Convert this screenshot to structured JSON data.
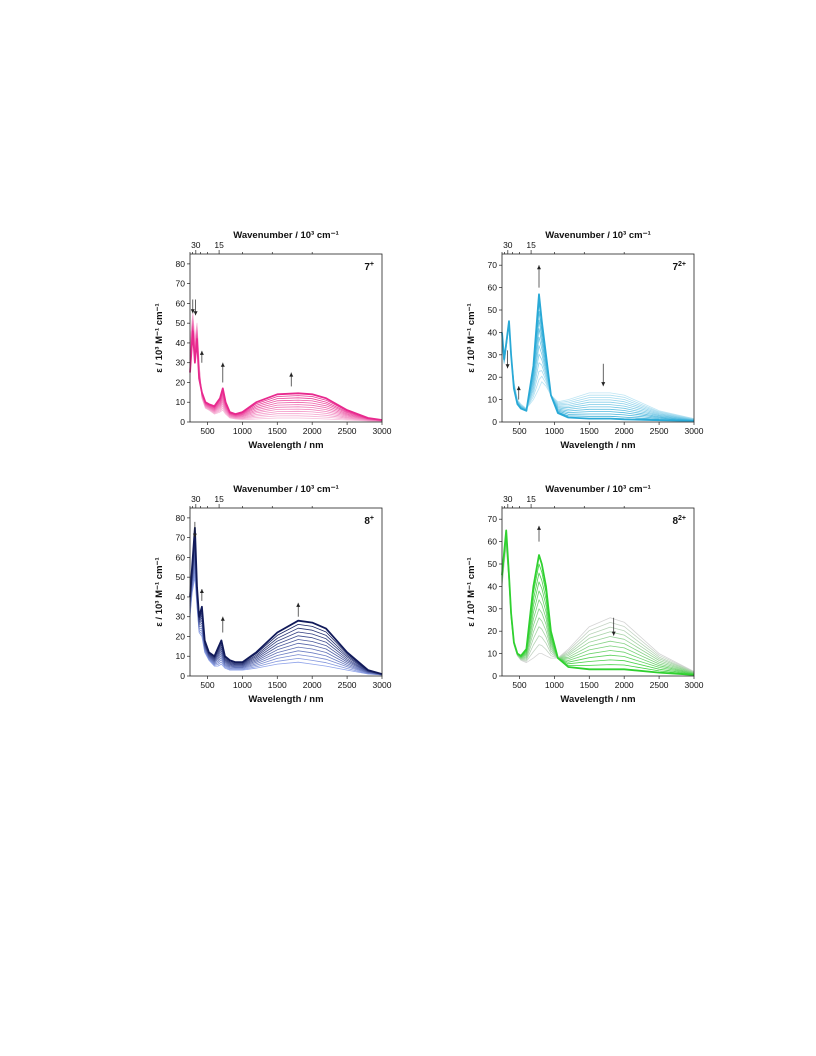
{
  "chart_data": [
    {
      "type": "line",
      "panel": "top-left",
      "compound_label": "7",
      "compound_superscript": "+",
      "xlabel": "Wavelength / nm",
      "ylabel": "ε / 10³ M⁻¹ cm⁻¹",
      "top_xlabel": "Wavenumber / 10³ cm⁻¹",
      "top_ticks": [
        "30",
        "15"
      ],
      "x_ticks": [
        500,
        1000,
        1500,
        2000,
        2500,
        3000
      ],
      "y_ticks": [
        0,
        10,
        20,
        30,
        40,
        50,
        60,
        70,
        80
      ],
      "xlim": [
        250,
        3000
      ],
      "ylim": [
        0,
        85
      ],
      "color_final": "#e8298e",
      "color_initial": "#f7bfdc",
      "n_traces": 12,
      "final_spectrum": {
        "x": [
          250,
          290,
          320,
          350,
          380,
          420,
          470,
          520,
          600,
          680,
          720,
          760,
          820,
          900,
          1000,
          1200,
          1500,
          1800,
          2000,
          2200,
          2500,
          2800,
          3000
        ],
        "y": [
          25,
          46,
          30,
          42,
          22,
          15,
          10,
          9,
          8,
          12,
          17,
          10,
          5,
          4,
          5,
          10,
          14,
          14.5,
          14,
          12,
          6,
          2,
          1
        ]
      },
      "initial_spectrum": {
        "x": [
          250,
          290,
          320,
          350,
          380,
          420,
          470,
          520,
          600,
          680,
          720,
          760,
          820,
          900,
          1000,
          1200,
          1500,
          1800,
          2000,
          2200,
          2500,
          2800,
          3000
        ],
        "y": [
          40,
          55,
          42,
          50,
          30,
          12,
          7,
          6,
          4,
          5,
          6,
          4,
          2,
          1.5,
          1.2,
          1.5,
          2,
          2,
          1.8,
          1.5,
          1,
          0.5,
          0.3
        ]
      },
      "arrows": [
        {
          "x": 290,
          "y_from": 62,
          "y_to": 55,
          "dir": "down"
        },
        {
          "x": 330,
          "y_from": 62,
          "y_to": 54,
          "dir": "down"
        },
        {
          "x": 420,
          "y_from": 30,
          "y_to": 36,
          "dir": "up"
        },
        {
          "x": 720,
          "y_from": 20,
          "y_to": 30,
          "dir": "up"
        },
        {
          "x": 1700,
          "y_from": 18,
          "y_to": 25,
          "dir": "up"
        }
      ]
    },
    {
      "type": "line",
      "panel": "top-right",
      "compound_label": "7",
      "compound_superscript": "2+",
      "xlabel": "Wavelength / nm",
      "ylabel": "ε / 10³ M⁻¹ cm⁻¹",
      "top_xlabel": "Wavenumber / 10³ cm⁻¹",
      "top_ticks": [
        "30",
        "15"
      ],
      "x_ticks": [
        500,
        1000,
        1500,
        2000,
        2500,
        3000
      ],
      "y_ticks": [
        0,
        10,
        20,
        30,
        40,
        50,
        60,
        70
      ],
      "xlim": [
        250,
        3000
      ],
      "ylim": [
        0,
        75
      ],
      "color_final": "#29a9d6",
      "color_initial": "#bfe6f4",
      "n_traces": 12,
      "final_spectrum": {
        "x": [
          250,
          280,
          310,
          350,
          380,
          420,
          470,
          520,
          600,
          700,
          780,
          820,
          880,
          950,
          1050,
          1200,
          1500,
          1800,
          2000,
          2500,
          3000
        ],
        "y": [
          40,
          28,
          35,
          45,
          30,
          15,
          8,
          6,
          5,
          25,
          57,
          45,
          30,
          12,
          4,
          2,
          1.5,
          1.5,
          1.2,
          0.8,
          0.5
        ]
      },
      "initial_spectrum": {
        "x": [
          250,
          280,
          310,
          350,
          380,
          420,
          470,
          520,
          600,
          700,
          780,
          820,
          880,
          950,
          1050,
          1200,
          1500,
          1800,
          2000,
          2500,
          3000
        ],
        "y": [
          38,
          26,
          33,
          43,
          30,
          18,
          10,
          8,
          6,
          10,
          15,
          18,
          16,
          12,
          9,
          10,
          13,
          13,
          12,
          5,
          1.5
        ]
      },
      "arrows": [
        {
          "x": 330,
          "y_from": 32,
          "y_to": 24,
          "dir": "down"
        },
        {
          "x": 490,
          "y_from": 10,
          "y_to": 16,
          "dir": "up"
        },
        {
          "x": 780,
          "y_from": 60,
          "y_to": 70,
          "dir": "up"
        },
        {
          "x": 1700,
          "y_from": 26,
          "y_to": 16,
          "dir": "down"
        }
      ]
    },
    {
      "type": "line",
      "panel": "bottom-left",
      "compound_label": "8",
      "compound_superscript": "+",
      "xlabel": "Wavelength / nm",
      "ylabel": "ε / 10³ M⁻¹ cm⁻¹",
      "top_xlabel": "Wavenumber / 10³ cm⁻¹",
      "top_ticks": [
        "30",
        "15"
      ],
      "x_ticks": [
        500,
        1000,
        1500,
        2000,
        2500,
        3000
      ],
      "y_ticks": [
        0,
        10,
        20,
        30,
        40,
        50,
        60,
        70,
        80
      ],
      "xlim": [
        250,
        3000
      ],
      "ylim": [
        0,
        85
      ],
      "color_final": "#111a5a",
      "color_initial": "#8fa3ea",
      "n_traces": 12,
      "final_spectrum": {
        "x": [
          250,
          280,
          320,
          350,
          380,
          420,
          460,
          520,
          600,
          650,
          700,
          750,
          820,
          900,
          1000,
          1200,
          1500,
          1800,
          2000,
          2200,
          2500,
          2800,
          3000
        ],
        "y": [
          40,
          55,
          75,
          45,
          30,
          35,
          18,
          12,
          10,
          14,
          18,
          10,
          8,
          7,
          7,
          12,
          22,
          28,
          27,
          24,
          12,
          3,
          1
        ]
      },
      "initial_spectrum": {
        "x": [
          250,
          280,
          320,
          350,
          380,
          420,
          460,
          520,
          600,
          650,
          700,
          750,
          820,
          900,
          1000,
          1200,
          1500,
          1800,
          2000,
          2200,
          2500,
          2800,
          3000
        ],
        "y": [
          30,
          42,
          50,
          35,
          22,
          20,
          12,
          8,
          5,
          5,
          6,
          4,
          3,
          3,
          3,
          4,
          6,
          7,
          6,
          5,
          3,
          1,
          0.5
        ]
      },
      "arrows": [
        {
          "x": 320,
          "y_from": 78,
          "y_to": 70,
          "dir": "down"
        },
        {
          "x": 420,
          "y_from": 38,
          "y_to": 44,
          "dir": "up"
        },
        {
          "x": 720,
          "y_from": 22,
          "y_to": 30,
          "dir": "up"
        },
        {
          "x": 1800,
          "y_from": 30,
          "y_to": 37,
          "dir": "up"
        }
      ]
    },
    {
      "type": "line",
      "panel": "bottom-right",
      "compound_label": "8",
      "compound_superscript": "2+",
      "xlabel": "Wavelength / nm",
      "ylabel": "ε / 10³ M⁻¹ cm⁻¹",
      "top_xlabel": "Wavenumber / 10³ cm⁻¹",
      "top_ticks": [
        "30",
        "15"
      ],
      "x_ticks": [
        500,
        1000,
        1500,
        2000,
        2500,
        3000
      ],
      "y_ticks": [
        0,
        10,
        20,
        30,
        40,
        50,
        60,
        70
      ],
      "xlim": [
        250,
        3000
      ],
      "ylim": [
        0,
        75
      ],
      "color_final": "#2fd12f",
      "color_initial": "#d4d4d4",
      "n_traces": 12,
      "final_spectrum": {
        "x": [
          250,
          280,
          310,
          350,
          380,
          420,
          470,
          520,
          600,
          700,
          780,
          820,
          880,
          950,
          1050,
          1200,
          1500,
          1800,
          2000,
          2500,
          3000
        ],
        "y": [
          45,
          55,
          65,
          45,
          28,
          15,
          10,
          9,
          12,
          40,
          54,
          50,
          40,
          20,
          8,
          4,
          3,
          3,
          3,
          1.5,
          0.5
        ]
      },
      "initial_spectrum": {
        "x": [
          250,
          280,
          310,
          350,
          380,
          420,
          470,
          520,
          600,
          700,
          780,
          820,
          880,
          950,
          1050,
          1200,
          1500,
          1800,
          2000,
          2500,
          3000
        ],
        "y": [
          40,
          50,
          58,
          42,
          26,
          14,
          9,
          7,
          6,
          8,
          10,
          10,
          9,
          8,
          8,
          12,
          22,
          26,
          24,
          10,
          2
        ]
      },
      "arrows": [
        {
          "x": 780,
          "y_from": 60,
          "y_to": 67,
          "dir": "up"
        },
        {
          "x": 1850,
          "y_from": 26,
          "y_to": 18,
          "dir": "down"
        }
      ]
    }
  ]
}
